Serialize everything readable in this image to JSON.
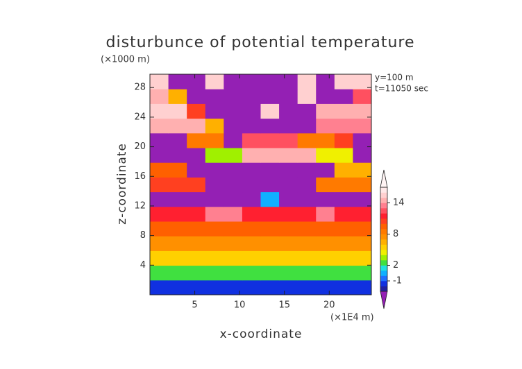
{
  "chart_data": {
    "type": "contour",
    "title": "disturbunce of potential temperature",
    "y_unit": "(×1000 m)",
    "x_unit": "(×1E4 m)",
    "annotations": [
      "y=100 m",
      "t=11050 sec"
    ],
    "xlabel": "x-coordinate",
    "ylabel": "z-coordinate",
    "xlim": [
      0,
      24.7
    ],
    "ylim": [
      0,
      29.8
    ],
    "xticks": [
      5,
      10,
      15,
      20
    ],
    "yticks": [
      4,
      8,
      12,
      16,
      20,
      24,
      28
    ],
    "z": [
      [
        -1.5,
        -1.5,
        -2,
        -1.5,
        -1.5,
        -1.5,
        -1.5,
        -1.5,
        -1.5,
        -1.5,
        -2,
        -1.5
      ],
      [
        2.5,
        2.5,
        2.5,
        2.5,
        2.5,
        2.5,
        2.5,
        2.5,
        2.5,
        2.5,
        2.5,
        2.5
      ],
      [
        5.5,
        5.5,
        5.5,
        5.5,
        5.5,
        5.5,
        5.5,
        5.5,
        5.5,
        5.5,
        5.5,
        5.5
      ],
      [
        7,
        7,
        7,
        7,
        7,
        7,
        7,
        7,
        7,
        7,
        7,
        7
      ],
      [
        9.5,
        9.5,
        9.5,
        9.5,
        9.5,
        9.5,
        9.5,
        9.5,
        9.5,
        9.5,
        9.5,
        9.5
      ],
      [
        11,
        11,
        11,
        13,
        13,
        11,
        11,
        11,
        11,
        13,
        11,
        11
      ],
      [
        -4,
        -4,
        -4,
        -4,
        -4,
        -4,
        0,
        -4,
        -4,
        -4,
        -4,
        -4
      ],
      [
        10,
        10,
        10,
        -4,
        -4,
        -4,
        -4,
        -4,
        -4,
        8,
        8,
        8
      ],
      [
        9,
        9,
        -4,
        -4,
        -4,
        -4,
        -4,
        -4,
        -4,
        -4,
        6,
        6
      ],
      [
        -4,
        -4,
        -4,
        3,
        3,
        14,
        14,
        14,
        14,
        4,
        4,
        -4
      ],
      [
        -4,
        -4,
        8,
        8,
        -4,
        12,
        12,
        12,
        8,
        8,
        10,
        -4
      ],
      [
        14,
        14,
        14,
        6,
        -4,
        -4,
        -4,
        -4,
        -4,
        13,
        13,
        13
      ],
      [
        15,
        15,
        10,
        -4,
        -4,
        -4,
        15,
        -4,
        -4,
        14,
        14,
        14
      ],
      [
        14,
        6,
        -4,
        -4,
        -4,
        -4,
        -4,
        -4,
        15,
        -4,
        -4,
        12
      ],
      [
        15,
        -4,
        -4,
        15,
        -4,
        -4,
        -4,
        -4,
        15,
        -4,
        15,
        15
      ]
    ],
    "levels": [
      -3,
      -2,
      -1,
      0,
      1,
      2,
      3,
      4,
      5,
      6,
      7,
      8,
      9,
      10,
      11,
      12,
      13,
      14,
      15,
      16,
      17
    ],
    "colors": [
      "#2020a0",
      "#1030e0",
      "#2070ff",
      "#10b0ff",
      "#20e0e0",
      "#40e040",
      "#a0f000",
      "#f0f000",
      "#ffd000",
      "#ffb000",
      "#ff9000",
      "#ff7a00",
      "#ff6000",
      "#ff4020",
      "#ff2030",
      "#ff5060",
      "#ff8090",
      "#ffb0b0",
      "#ffd0d0",
      "#ffe8e8"
    ],
    "below_color": "#9420b4",
    "above_color": "#fff4f4",
    "cticks": [
      -1,
      2,
      8,
      14
    ]
  }
}
